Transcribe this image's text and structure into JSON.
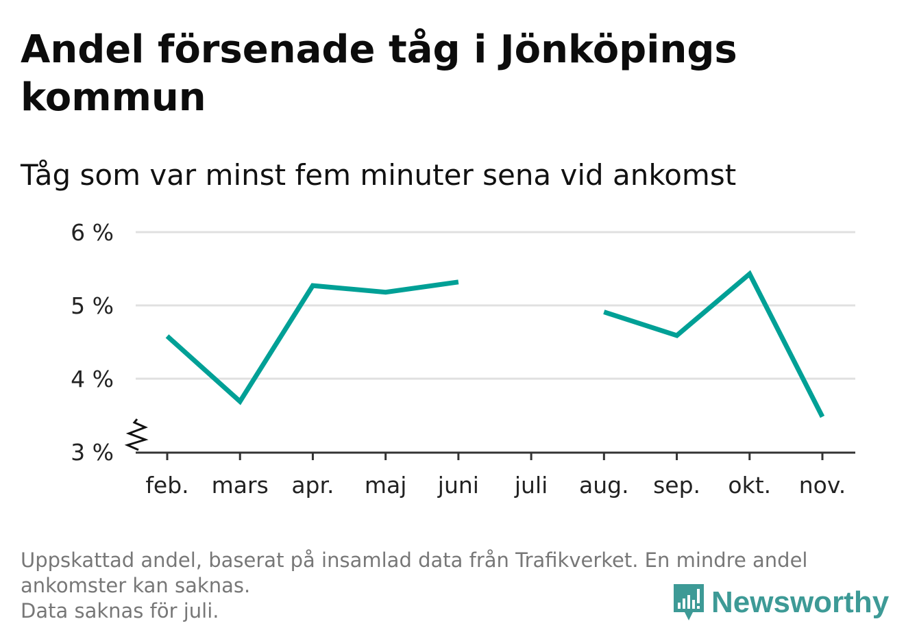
{
  "title": "Andel försenade tåg i Jönköpings kommun",
  "subtitle": "Tåg som var minst fem minuter sena vid ankomst",
  "colors": {
    "line": "#00a096",
    "grid": "#e0e0e0",
    "axis": "#333333",
    "footer_text": "#777777",
    "brand": "#3d9a96"
  },
  "chart_data": {
    "type": "line",
    "categories": [
      "feb.",
      "mars",
      "apr.",
      "maj",
      "juni",
      "juli",
      "aug.",
      "sep.",
      "okt.",
      "nov."
    ],
    "series": [
      {
        "values": [
          4.58,
          3.69,
          5.27,
          5.18,
          5.32,
          null,
          4.91,
          4.59,
          5.43,
          3.48
        ]
      }
    ],
    "yticks": [
      "3 %",
      "4 %",
      "5 %",
      "6 %"
    ],
    "ytick_values": [
      3,
      4,
      5,
      6
    ],
    "ylim": [
      3,
      6
    ],
    "y_axis_break": true,
    "grid": true
  },
  "footer": {
    "lines": [
      "Uppskattad andel, baserat på insamlad data från Trafikverket. En mindre andel",
      "ankomster kan saknas.",
      "Data saknas för juli."
    ]
  },
  "brand": {
    "name": "Newsworthy",
    "icon": "newsworthy-logo-icon"
  }
}
